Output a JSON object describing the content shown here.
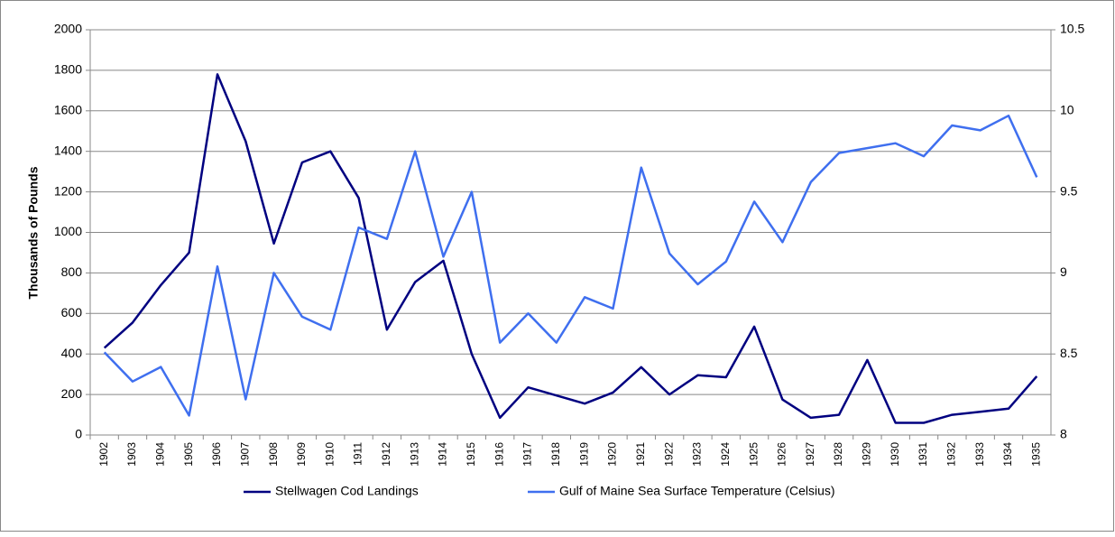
{
  "chart_data": {
    "type": "line",
    "categories": [
      "1902",
      "1903",
      "1904",
      "1905",
      "1906",
      "1907",
      "1908",
      "1909",
      "1910",
      "1911",
      "1912",
      "1913",
      "1914",
      "1915",
      "1916",
      "1917",
      "1918",
      "1919",
      "1920",
      "1921",
      "1922",
      "1923",
      "1924",
      "1925",
      "1926",
      "1927",
      "1928",
      "1929",
      "1930",
      "1931",
      "1932",
      "1933",
      "1934",
      "1935"
    ],
    "ylabel": "Thousands of Pounds",
    "ylim": [
      0,
      2000
    ],
    "yticks": [
      0,
      200,
      400,
      600,
      800,
      1000,
      1200,
      1400,
      1600,
      1800,
      2000
    ],
    "y2lim": [
      8,
      10.5
    ],
    "y2ticks": [
      8,
      8.5,
      9,
      9.5,
      10,
      10.5
    ],
    "grid": true,
    "legend": "bottom",
    "series": [
      {
        "name": "Stellwagen Cod Landings",
        "color": "#000080",
        "values": [
          430,
          555,
          740,
          900,
          1780,
          1450,
          945,
          1345,
          1400,
          1170,
          520,
          755,
          860,
          400,
          85,
          235,
          195,
          155,
          210,
          335,
          200,
          295,
          285,
          535,
          175,
          85,
          100,
          370,
          60,
          60,
          100,
          115,
          130,
          290
        ]
      },
      {
        "name": "Gulf of Maine Sea Surface Temperature (Celsius)",
        "color": "#3f6fef",
        "axis": "y2",
        "values": [
          8.51,
          8.33,
          8.42,
          8.12,
          9.04,
          8.22,
          9.0,
          8.73,
          8.65,
          9.28,
          9.21,
          9.75,
          9.1,
          9.5,
          8.57,
          8.75,
          8.57,
          8.85,
          8.78,
          9.65,
          9.12,
          8.93,
          9.07,
          9.44,
          9.19,
          9.56,
          9.74,
          9.77,
          9.8,
          9.72,
          9.91,
          9.88,
          9.97,
          9.59
        ]
      }
    ]
  }
}
